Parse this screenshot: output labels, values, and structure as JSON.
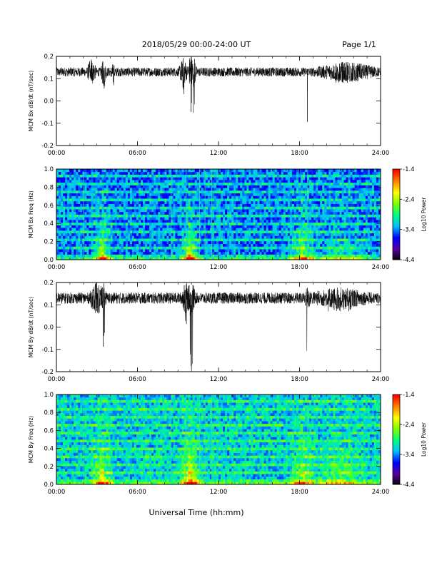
{
  "header": {
    "title": "2018/05/29  00:00-24:00 UT",
    "page": "Page 1/1"
  },
  "colors": {
    "trace": "#000000",
    "colormap": [
      "#000000",
      "#5a00a0",
      "#0000ff",
      "#00bfff",
      "#00ff80",
      "#80ff00",
      "#ffff00",
      "#ff8000",
      "#ff0000"
    ]
  },
  "chart_data": [
    {
      "type": "line",
      "ylabel": "MCM Bx dB/dt (nT/sec)",
      "xlabel": "",
      "x_ticks": [
        "00:00",
        "06:00",
        "12:00",
        "18:00",
        "24:00"
      ],
      "y_ticks": [
        "-0.2",
        "-0.1",
        "0.0",
        "0.1",
        "0.2"
      ],
      "xlim_hours": [
        0,
        24
      ],
      "ylim": [
        -0.2,
        0.2
      ],
      "series": [
        {
          "baseline": 0.13,
          "noise_amplitude": 0.02,
          "events": [
            {
              "t": 2.6,
              "width": 0.35,
              "amp": 0.07,
              "min": 0.09
            },
            {
              "t": 3.5,
              "width": 0.25,
              "amp": 0.06,
              "min": 0.05
            },
            {
              "t": 4.2,
              "width": 0.2,
              "amp": 0.04,
              "min": 0.07
            },
            {
              "t": 9.4,
              "width": 0.35,
              "amp": 0.07,
              "min": 0.03
            },
            {
              "t": 9.95,
              "width": 0.25,
              "amp": 0.09,
              "min": -0.08
            },
            {
              "t": 10.2,
              "width": 0.2,
              "amp": 0.07,
              "min": -0.06
            },
            {
              "t": 18.6,
              "width": 0.05,
              "amp": 0.02,
              "min": -0.19
            },
            {
              "t": 21.5,
              "width": 2.5,
              "amp": 0.05,
              "min": 0.08
            }
          ]
        }
      ]
    },
    {
      "type": "heatmap",
      "ylabel": "MCM Bx Freq (Hz)",
      "colorbar_label": "Log10 Power",
      "colorbar_ticks": [
        "-1.4",
        "-2.4",
        "-3.4",
        "-4.4"
      ],
      "x_ticks": [
        "00:00",
        "06:00",
        "12:00",
        "18:00",
        "24:00"
      ],
      "y_ticks": [
        "0.0",
        "0.2",
        "0.4",
        "0.6",
        "0.8",
        "1.0"
      ],
      "xlim_hours": [
        0,
        24
      ],
      "ylim": [
        0,
        1.0
      ],
      "zlim": [
        -4.4,
        -1.4
      ],
      "background_level": 0.32,
      "bursts": [
        {
          "t": 3.4,
          "width": 0.9,
          "strength": 0.45
        },
        {
          "t": 9.9,
          "width": 0.8,
          "strength": 0.55
        },
        {
          "t": 18.2,
          "width": 1.2,
          "strength": 0.4
        },
        {
          "t": 21.0,
          "width": 2.5,
          "strength": 0.2
        }
      ],
      "vertical_lines_hours": [
        2.0,
        8.5,
        9.6,
        10.6,
        11.0,
        11.5,
        18.6
      ]
    },
    {
      "type": "line",
      "ylabel": "MCM By dB/dt (nT/sec)",
      "xlabel": "",
      "x_ticks": [
        "00:00",
        "06:00",
        "12:00",
        "18:00",
        "24:00"
      ],
      "y_ticks": [
        "-0.2",
        "-0.1",
        "0.0",
        "0.1",
        "0.2"
      ],
      "xlim_hours": [
        0,
        24
      ],
      "ylim": [
        -0.2,
        0.2
      ],
      "series": [
        {
          "baseline": 0.13,
          "noise_amplitude": 0.025,
          "events": [
            {
              "t": 3.0,
              "width": 0.6,
              "amp": 0.08,
              "min": 0.06
            },
            {
              "t": 3.5,
              "width": 0.2,
              "amp": 0.07,
              "min": -0.1
            },
            {
              "t": 9.6,
              "width": 0.4,
              "amp": 0.08,
              "min": 0.01
            },
            {
              "t": 10.0,
              "width": 0.3,
              "amp": 0.1,
              "min": -0.2
            },
            {
              "t": 18.6,
              "width": 0.25,
              "amp": 0.06,
              "min": -0.2
            },
            {
              "t": 21.0,
              "width": 2.5,
              "amp": 0.05,
              "min": 0.07
            }
          ]
        }
      ]
    },
    {
      "type": "heatmap",
      "ylabel": "MCM By Freq (Hz)",
      "colorbar_label": "Log10 Power",
      "colorbar_ticks": [
        "-1.4",
        "-2.4",
        "-3.4",
        "-4.4"
      ],
      "x_ticks": [
        "00:00",
        "06:00",
        "12:00",
        "18:00",
        "24:00"
      ],
      "y_ticks": [
        "0.0",
        "0.2",
        "0.4",
        "0.6",
        "0.8",
        "1.0"
      ],
      "xlim_hours": [
        0,
        24
      ],
      "ylim": [
        0,
        1.0
      ],
      "zlim": [
        -4.4,
        -1.4
      ],
      "background_level": 0.4,
      "bursts": [
        {
          "t": 3.4,
          "width": 1.0,
          "strength": 0.4
        },
        {
          "t": 9.9,
          "width": 0.9,
          "strength": 0.55
        },
        {
          "t": 18.3,
          "width": 1.2,
          "strength": 0.35
        },
        {
          "t": 21.0,
          "width": 2.5,
          "strength": 0.22
        }
      ],
      "vertical_lines_hours": [
        2.0,
        8.5,
        9.6,
        10.6,
        11.0,
        11.5,
        18.6
      ]
    }
  ],
  "xaxis_label": "Universal Time (hh:mm)"
}
